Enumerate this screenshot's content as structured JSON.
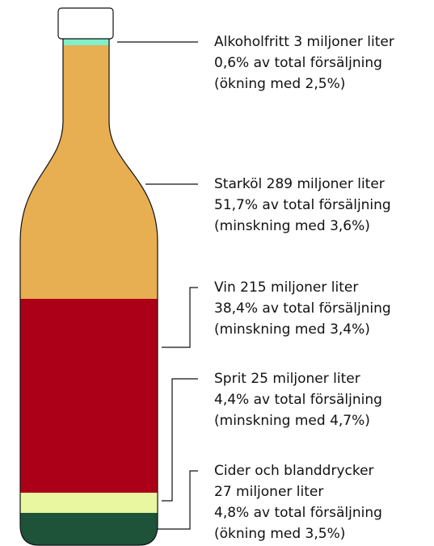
{
  "items": [
    {
      "lines": [
        "Alkoholfritt 3 miljoner liter",
        "0,6% av total försäljning",
        "(ökning med 2,5%)"
      ]
    },
    {
      "lines": [
        "Starköl 289 miljoner liter",
        "51,7% av total försäljning",
        "(minskning med 3,6%)"
      ]
    },
    {
      "lines": [
        "Vin 215 miljoner liter",
        "38,4% av total försäljning",
        "(minskning med 3,4%)"
      ]
    },
    {
      "lines": [
        "Sprit 25 miljoner liter",
        "4,4% av total försäljning",
        "(minskning med 4,7%)"
      ]
    },
    {
      "lines": [
        "Cider och blanddrycker",
        "27 miljoner liter",
        "4,8% av total försäljning",
        "(ökning med 3,5%)"
      ]
    }
  ]
}
